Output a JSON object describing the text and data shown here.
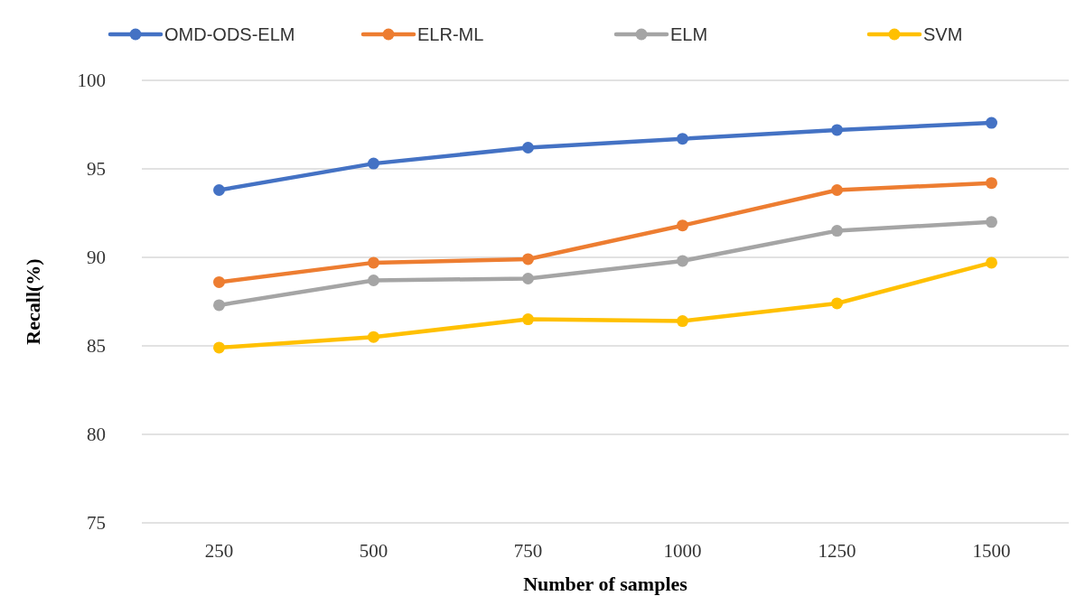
{
  "chart_data": {
    "type": "line",
    "xlabel": "Number of samples",
    "ylabel": "Recall(%)",
    "categories": [
      "250",
      "500",
      "750",
      "1000",
      "1250",
      "1500"
    ],
    "series": [
      {
        "name": "OMD-ODS-ELM",
        "color": "#4472c4",
        "values": [
          93.8,
          95.3,
          96.2,
          96.7,
          97.2,
          97.6
        ]
      },
      {
        "name": "ELR-ML",
        "color": "#ed7d31",
        "values": [
          88.6,
          89.7,
          89.9,
          91.8,
          93.8,
          94.2
        ]
      },
      {
        "name": "ELM",
        "color": "#a5a5a5",
        "values": [
          87.3,
          88.7,
          88.8,
          89.8,
          91.5,
          92.0
        ]
      },
      {
        "name": "SVM",
        "color": "#ffc000",
        "values": [
          84.9,
          85.5,
          86.5,
          86.4,
          87.4,
          89.7
        ]
      }
    ],
    "ylim": [
      75,
      100
    ],
    "yticks": [
      75,
      80,
      85,
      90,
      95,
      100
    ],
    "grid": "y",
    "legend": "top",
    "marker": "circle",
    "line_style": "solid"
  }
}
